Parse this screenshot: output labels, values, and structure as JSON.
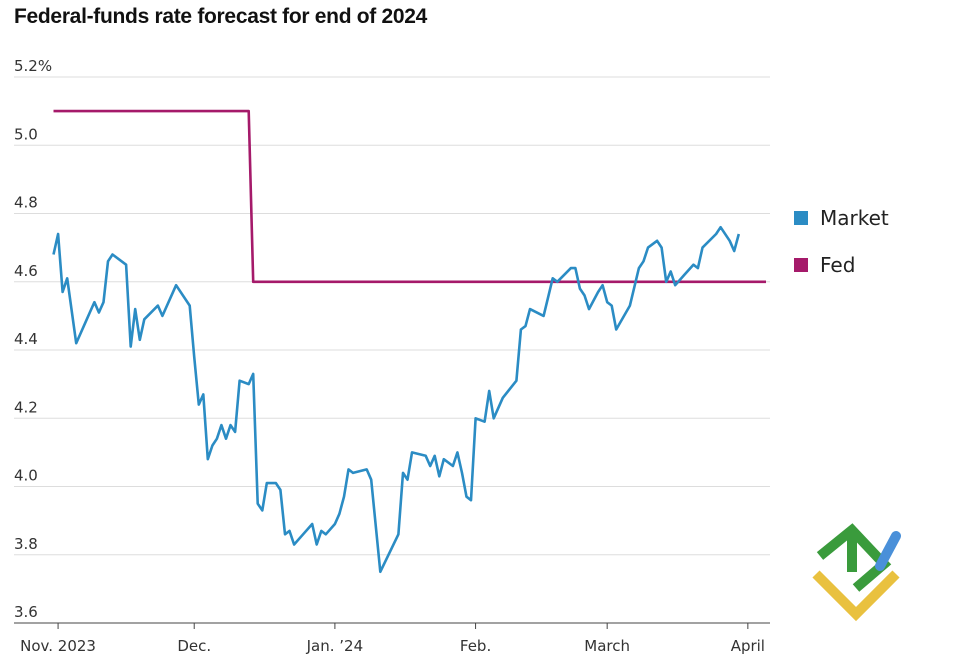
{
  "chart_data": {
    "type": "line",
    "title": "Federal-funds rate forecast for end of 2024",
    "xlabel": "",
    "ylabel": "",
    "ylim": [
      3.6,
      5.2
    ],
    "y_ticks": [
      "5.2%",
      "5.0",
      "4.8",
      "4.6",
      "4.4",
      "4.2",
      "4.0",
      "3.8",
      "3.6"
    ],
    "y_tick_values": [
      5.2,
      5.0,
      4.8,
      4.6,
      4.4,
      4.2,
      4.0,
      3.8,
      3.6
    ],
    "x_range": [
      "2023-10-30",
      "2024-04-05"
    ],
    "x_ticks": [
      {
        "label": "Nov. 2023",
        "date": "2023-11-01"
      },
      {
        "label": "Dec.",
        "date": "2023-12-01"
      },
      {
        "label": "Jan. ’24",
        "date": "2024-01-01"
      },
      {
        "label": "Feb.",
        "date": "2024-02-01"
      },
      {
        "label": "March",
        "date": "2024-03-01"
      },
      {
        "label": "April",
        "date": "2024-04-01"
      }
    ],
    "grid": true,
    "legend_position": "right",
    "series": [
      {
        "name": "Market",
        "color": "#2b8cc4",
        "points": [
          [
            "2023-10-31",
            4.68
          ],
          [
            "2023-11-01",
            4.74
          ],
          [
            "2023-11-02",
            4.57
          ],
          [
            "2023-11-03",
            4.61
          ],
          [
            "2023-11-05",
            4.42
          ],
          [
            "2023-11-06",
            4.45
          ],
          [
            "2023-11-07",
            4.48
          ],
          [
            "2023-11-08",
            4.51
          ],
          [
            "2023-11-09",
            4.54
          ],
          [
            "2023-11-10",
            4.51
          ],
          [
            "2023-11-11",
            4.54
          ],
          [
            "2023-11-12",
            4.66
          ],
          [
            "2023-11-13",
            4.68
          ],
          [
            "2023-11-16",
            4.65
          ],
          [
            "2023-11-17",
            4.41
          ],
          [
            "2023-11-18",
            4.52
          ],
          [
            "2023-11-19",
            4.43
          ],
          [
            "2023-11-20",
            4.49
          ],
          [
            "2023-11-23",
            4.53
          ],
          [
            "2023-11-24",
            4.5
          ],
          [
            "2023-11-27",
            4.59
          ],
          [
            "2023-11-30",
            4.53
          ],
          [
            "2023-12-01",
            4.38
          ],
          [
            "2023-12-02",
            4.24
          ],
          [
            "2023-12-03",
            4.27
          ],
          [
            "2023-12-04",
            4.08
          ],
          [
            "2023-12-05",
            4.12
          ],
          [
            "2023-12-06",
            4.14
          ],
          [
            "2023-12-07",
            4.18
          ],
          [
            "2023-12-08",
            4.14
          ],
          [
            "2023-12-09",
            4.18
          ],
          [
            "2023-12-10",
            4.16
          ],
          [
            "2023-12-11",
            4.31
          ],
          [
            "2023-12-13",
            4.3
          ],
          [
            "2023-12-14",
            4.33
          ],
          [
            "2023-12-15",
            3.95
          ],
          [
            "2023-12-16",
            3.93
          ],
          [
            "2023-12-17",
            4.01
          ],
          [
            "2023-12-19",
            4.01
          ],
          [
            "2023-12-20",
            3.99
          ],
          [
            "2023-12-21",
            3.86
          ],
          [
            "2023-12-22",
            3.87
          ],
          [
            "2023-12-23",
            3.83
          ],
          [
            "2023-12-25",
            3.86
          ],
          [
            "2023-12-27",
            3.89
          ],
          [
            "2023-12-28",
            3.83
          ],
          [
            "2023-12-29",
            3.87
          ],
          [
            "2023-12-30",
            3.86
          ],
          [
            "2024-01-01",
            3.89
          ],
          [
            "2024-01-02",
            3.92
          ],
          [
            "2024-01-03",
            3.97
          ],
          [
            "2024-01-04",
            4.05
          ],
          [
            "2024-01-05",
            4.04
          ],
          [
            "2024-01-08",
            4.05
          ],
          [
            "2024-01-09",
            4.02
          ],
          [
            "2024-01-11",
            3.75
          ],
          [
            "2024-01-15",
            3.86
          ],
          [
            "2024-01-16",
            4.04
          ],
          [
            "2024-01-17",
            4.02
          ],
          [
            "2024-01-18",
            4.1
          ],
          [
            "2024-01-21",
            4.09
          ],
          [
            "2024-01-22",
            4.06
          ],
          [
            "2024-01-23",
            4.09
          ],
          [
            "2024-01-24",
            4.03
          ],
          [
            "2024-01-25",
            4.08
          ],
          [
            "2024-01-27",
            4.06
          ],
          [
            "2024-01-28",
            4.1
          ],
          [
            "2024-01-29",
            4.04
          ],
          [
            "2024-01-30",
            3.97
          ],
          [
            "2024-01-31",
            3.96
          ],
          [
            "2024-02-01",
            4.2
          ],
          [
            "2024-02-03",
            4.19
          ],
          [
            "2024-02-04",
            4.28
          ],
          [
            "2024-02-05",
            4.2
          ],
          [
            "2024-02-07",
            4.26
          ],
          [
            "2024-02-10",
            4.31
          ],
          [
            "2024-02-11",
            4.46
          ],
          [
            "2024-02-12",
            4.47
          ],
          [
            "2024-02-13",
            4.52
          ],
          [
            "2024-02-16",
            4.5
          ],
          [
            "2024-02-18",
            4.61
          ],
          [
            "2024-02-19",
            4.6
          ],
          [
            "2024-02-22",
            4.64
          ],
          [
            "2024-02-23",
            4.64
          ],
          [
            "2024-02-24",
            4.58
          ],
          [
            "2024-02-25",
            4.56
          ],
          [
            "2024-02-26",
            4.52
          ],
          [
            "2024-02-28",
            4.57
          ],
          [
            "2024-02-29",
            4.59
          ],
          [
            "2024-03-01",
            4.54
          ],
          [
            "2024-03-02",
            4.53
          ],
          [
            "2024-03-03",
            4.46
          ],
          [
            "2024-03-06",
            4.53
          ],
          [
            "2024-03-08",
            4.64
          ],
          [
            "2024-03-09",
            4.66
          ],
          [
            "2024-03-10",
            4.7
          ],
          [
            "2024-03-12",
            4.72
          ],
          [
            "2024-03-13",
            4.7
          ],
          [
            "2024-03-14",
            4.6
          ],
          [
            "2024-03-15",
            4.63
          ],
          [
            "2024-03-16",
            4.59
          ],
          [
            "2024-03-18",
            4.62
          ],
          [
            "2024-03-20",
            4.65
          ],
          [
            "2024-03-21",
            4.64
          ],
          [
            "2024-03-22",
            4.7
          ],
          [
            "2024-03-25",
            4.74
          ],
          [
            "2024-03-26",
            4.76
          ],
          [
            "2024-03-28",
            4.72
          ],
          [
            "2024-03-29",
            4.69
          ],
          [
            "2024-03-30",
            4.74
          ]
        ]
      },
      {
        "name": "Fed",
        "color": "#a51a6a",
        "points": [
          [
            "2023-10-31",
            5.1
          ],
          [
            "2023-12-13",
            5.1
          ],
          [
            "2023-12-14",
            4.6
          ],
          [
            "2024-04-05",
            4.6
          ]
        ]
      }
    ]
  },
  "legend": {
    "market_label": "Market",
    "fed_label": "Fed",
    "market_color": "#2b8cc4",
    "fed_color": "#a51a6a"
  },
  "logo": {
    "name": "watermark-logo-icon"
  }
}
